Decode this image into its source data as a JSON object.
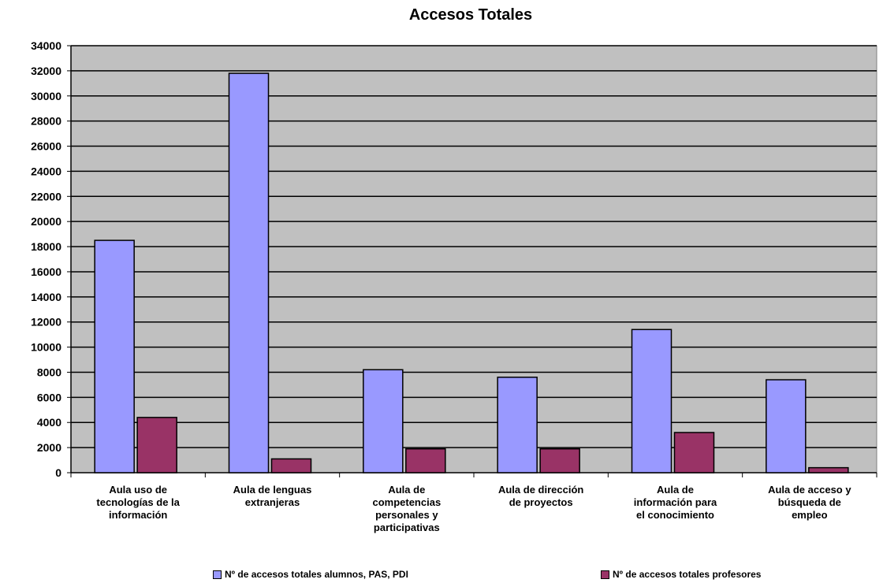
{
  "chart_data": {
    "type": "bar",
    "title": "Accesos Totales",
    "categories": [
      [
        "Aula uso de",
        "tecnologías de la",
        "información"
      ],
      [
        "Aula de lenguas",
        "extranjeras"
      ],
      [
        "Aula de",
        "competencias",
        "personales y",
        "participativas"
      ],
      [
        "Aula de dirección",
        "de proyectos"
      ],
      [
        "Aula de",
        "información para",
        "el conocimiento"
      ],
      [
        "Aula de acceso y",
        "búsqueda de",
        "empleo"
      ]
    ],
    "series": [
      {
        "name": "Nº de accesos totales alumnos, PAS, PDI",
        "color": "#9999ff",
        "values": [
          18500,
          31800,
          8200,
          7600,
          11400,
          7400
        ]
      },
      {
        "name": "Nº de accesos totales profesores",
        "color": "#993366",
        "values": [
          4400,
          1100,
          1900,
          1900,
          3200,
          400
        ]
      }
    ],
    "ylim": [
      0,
      34000
    ],
    "yticks": [
      "0",
      "2000",
      "4000",
      "6000",
      "8000",
      "10000",
      "12000",
      "14000",
      "16000",
      "18000",
      "20000",
      "22000",
      "24000",
      "26000",
      "28000",
      "30000",
      "32000",
      "34000"
    ],
    "grid": true,
    "legend_position": "bottom",
    "plot_background": "#c0c0c0"
  }
}
